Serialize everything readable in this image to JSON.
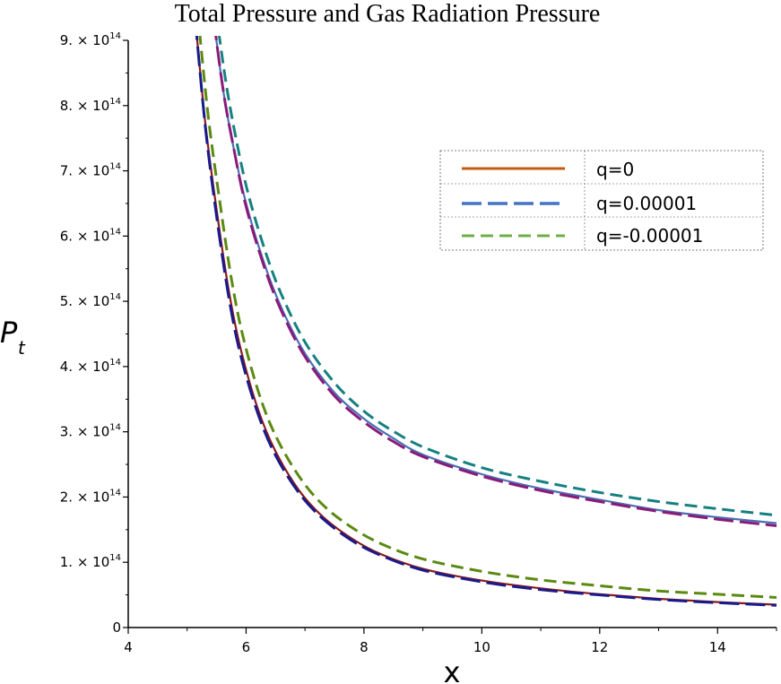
{
  "chart_data": {
    "type": "line",
    "title": "Total Pressure and Gas Radiation Pressure",
    "xlabel": "x",
    "ylabel": "P",
    "ylabel_subscript": "t",
    "xlim": [
      4,
      15
    ],
    "ylim": [
      0,
      900000000000000.0
    ],
    "x_ticks": [
      4,
      6,
      8,
      10,
      12,
      14
    ],
    "x_tick_labels": [
      "4",
      "6",
      "8",
      "10",
      "12",
      "14"
    ],
    "y_ticks": [
      0,
      100000000000000.0,
      200000000000000.0,
      300000000000000.0,
      400000000000000.0,
      500000000000000.0,
      600000000000000.0,
      700000000000000.0,
      800000000000000.0,
      900000000000000.0
    ],
    "y_tick_labels": [
      {
        "value": "0",
        "coef": "",
        "base": "",
        "exp": ""
      },
      {
        "value": "1e14",
        "coef": "1.",
        "base": "10",
        "exp": "14"
      },
      {
        "value": "2e14",
        "coef": "2.",
        "base": "10",
        "exp": "14"
      },
      {
        "value": "3e14",
        "coef": "3.",
        "base": "10",
        "exp": "14"
      },
      {
        "value": "4e14",
        "coef": "4.",
        "base": "10",
        "exp": "14"
      },
      {
        "value": "5e14",
        "coef": "5.",
        "base": "10",
        "exp": "14"
      },
      {
        "value": "6e14",
        "coef": "6.",
        "base": "10",
        "exp": "14"
      },
      {
        "value": "7e14",
        "coef": "7.",
        "base": "10",
        "exp": "14"
      },
      {
        "value": "8e14",
        "coef": "8.",
        "base": "10",
        "exp": "14"
      },
      {
        "value": "9e14",
        "coef": "9.",
        "base": "10",
        "exp": "14"
      }
    ],
    "grid": false,
    "legend": {
      "placement": "top-right",
      "entries": [
        {
          "label": "q=0",
          "color": "#c55a11",
          "dash": "solid"
        },
        {
          "label": "q=0.00001",
          "color": "#4472c4",
          "dash": "long-dash"
        },
        {
          "label": "q=-0.00001",
          "color": "#70ad47",
          "dash": "dash"
        }
      ]
    },
    "series": [
      {
        "group": "upper",
        "color": "#4a6fb0",
        "dash": "solid",
        "x": [
          5.4,
          5.6,
          5.8,
          6.0,
          6.3,
          6.6,
          7.0,
          7.5,
          8.0,
          8.5,
          9.0,
          10.0,
          11.0,
          12.0,
          13.0,
          14.0,
          15.0
        ],
        "y": [
          970000000000000.0,
          830000000000000.0,
          730000000000000.0,
          650000000000000.0,
          560000000000000.0,
          490000000000000.0,
          420000000000000.0,
          360000000000000.0,
          320000000000000.0,
          290000000000000.0,
          265000000000000.0,
          235000000000000.0,
          213000000000000.0,
          196000000000000.0,
          180000000000000.0,
          169000000000000.0,
          160000000000000.0
        ]
      },
      {
        "group": "upper",
        "color": "#8a1a7a",
        "dash": "long-dash",
        "x": [
          5.4,
          5.6,
          5.8,
          6.0,
          6.3,
          6.6,
          7.0,
          7.5,
          8.0,
          8.5,
          9.0,
          10.0,
          11.0,
          12.0,
          13.0,
          14.0,
          15.0
        ],
        "y": [
          970000000000000.0,
          830000000000000.0,
          730000000000000.0,
          645000000000000.0,
          555000000000000.0,
          485000000000000.0,
          415000000000000.0,
          355000000000000.0,
          315000000000000.0,
          285000000000000.0,
          262000000000000.0,
          232000000000000.0,
          210000000000000.0,
          193000000000000.0,
          178000000000000.0,
          166000000000000.0,
          156000000000000.0
        ]
      },
      {
        "group": "upper",
        "color": "#168080",
        "dash": "dash",
        "x": [
          5.45,
          5.65,
          5.85,
          6.05,
          6.35,
          6.65,
          7.05,
          7.55,
          8.05,
          8.55,
          9.05,
          10.0,
          11.0,
          12.0,
          13.0,
          14.0,
          15.0
        ],
        "y": [
          970000000000000.0,
          840000000000000.0,
          740000000000000.0,
          660000000000000.0,
          570000000000000.0,
          500000000000000.0,
          430000000000000.0,
          370000000000000.0,
          328000000000000.0,
          298000000000000.0,
          275000000000000.0,
          245000000000000.0,
          224000000000000.0,
          207000000000000.0,
          193000000000000.0,
          182000000000000.0,
          172000000000000.0
        ]
      },
      {
        "group": "lower",
        "color": "#8b1a1a",
        "dash": "solid",
        "x": [
          5.1,
          5.3,
          5.5,
          5.7,
          5.9,
          6.2,
          6.5,
          6.9,
          7.3,
          7.8,
          8.3,
          9.0,
          10.0,
          11.0,
          12.0,
          13.0,
          14.0,
          15.0
        ],
        "y": [
          970000000000000.0,
          780000000000000.0,
          640000000000000.0,
          520000000000000.0,
          430000000000000.0,
          335000000000000.0,
          270000000000000.0,
          210000000000000.0,
          170000000000000.0,
          136000000000000.0,
          112000000000000.0,
          90000000000000.0,
          72000000000000.0,
          60000000000000.0,
          51000000000000.0,
          44000000000000.0,
          39000000000000.0,
          35000000000000.0
        ]
      },
      {
        "group": "lower",
        "color": "#1a1a8a",
        "dash": "long-dash",
        "x": [
          5.1,
          5.3,
          5.5,
          5.7,
          5.9,
          6.2,
          6.5,
          6.9,
          7.3,
          7.8,
          8.3,
          9.0,
          10.0,
          11.0,
          12.0,
          13.0,
          14.0,
          15.0
        ],
        "y": [
          970000000000000.0,
          775000000000000.0,
          630000000000000.0,
          510000000000000.0,
          420000000000000.0,
          328000000000000.0,
          264000000000000.0,
          206000000000000.0,
          167000000000000.0,
          133000000000000.0,
          110000000000000.0,
          88000000000000.0,
          70000000000000.0,
          58000000000000.0,
          50000000000000.0,
          43000000000000.0,
          38000000000000.0,
          34000000000000.0
        ]
      },
      {
        "group": "lower",
        "color": "#5a8a10",
        "dash": "dash",
        "x": [
          5.15,
          5.35,
          5.55,
          5.75,
          5.95,
          6.25,
          6.55,
          6.95,
          7.35,
          7.85,
          8.35,
          9.0,
          10.0,
          11.0,
          12.0,
          13.0,
          14.0,
          15.0
        ],
        "y": [
          970000000000000.0,
          790000000000000.0,
          655000000000000.0,
          535000000000000.0,
          445000000000000.0,
          350000000000000.0,
          285000000000000.0,
          225000000000000.0,
          184000000000000.0,
          150000000000000.0,
          126000000000000.0,
          105000000000000.0,
          86000000000000.0,
          73000000000000.0,
          64000000000000.0,
          56000000000000.0,
          51000000000000.0,
          46000000000000.0
        ]
      }
    ]
  }
}
